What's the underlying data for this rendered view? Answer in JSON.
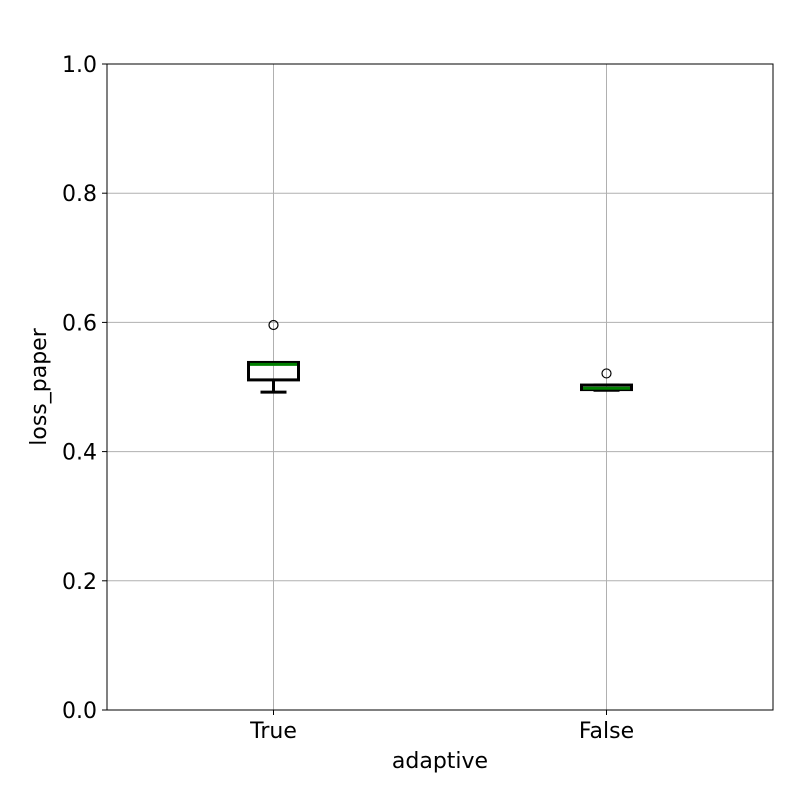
{
  "chart_data": {
    "type": "box",
    "xlabel": "adaptive",
    "ylabel": "loss_paper",
    "ylim": [
      0.0,
      1.0
    ],
    "yticks": [
      "0.0",
      "0.2",
      "0.4",
      "0.6",
      "0.8",
      "1.0"
    ],
    "grid": true,
    "categories": [
      "True",
      "False"
    ],
    "boxes": [
      {
        "category": "True",
        "whisker_low": 0.492,
        "q1": 0.511,
        "median": 0.535,
        "q3": 0.538,
        "whisker_high": 0.538,
        "outliers": [
          0.596
        ]
      },
      {
        "category": "False",
        "whisker_low": 0.495,
        "q1": 0.496,
        "median": 0.498,
        "q3": 0.503,
        "whisker_high": 0.503,
        "outliers": [
          0.521
        ]
      }
    ],
    "colors": {
      "box": "#000000",
      "median": "#008000",
      "grid": "#b0b0b0"
    }
  }
}
